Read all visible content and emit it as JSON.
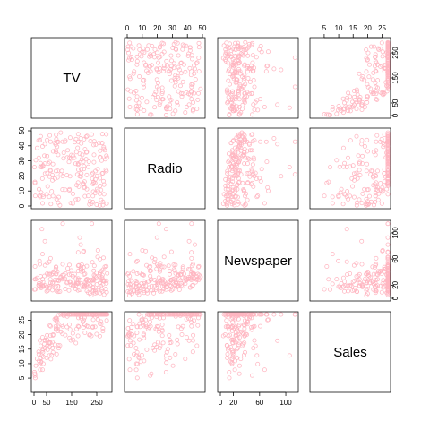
{
  "chart_data": {
    "type": "scatter",
    "subtype": "scatterplot-matrix",
    "variables": [
      "TV",
      "Radio",
      "Newspaper",
      "Sales"
    ],
    "point_color": "#FFB6C1",
    "point_shape": "open-circle",
    "point_count": 200,
    "axes": {
      "TV": {
        "range": [
          0,
          300
        ],
        "ticks": [
          0,
          50,
          150,
          250
        ]
      },
      "Radio": {
        "range": [
          0,
          50
        ],
        "ticks": [
          0,
          10,
          20,
          30,
          40,
          50
        ]
      },
      "Newspaper": {
        "range": [
          0,
          115
        ],
        "ticks": [
          0,
          20,
          60,
          100
        ]
      },
      "Sales": {
        "range": [
          1,
          27
        ],
        "ticks": [
          5,
          10,
          15,
          20,
          25
        ]
      }
    },
    "relationships": {
      "Sales_vs_TV": "strong positive, curving (sales rise quickly at low TV then level off)",
      "Sales_vs_Radio": "moderate positive",
      "Sales_vs_Newspaper": "weak",
      "Radio_vs_TV": "none",
      "Newspaper_vs_TV": "none",
      "Newspaper_vs_Radio": "weak positive"
    },
    "axis_label_placement": {
      "top": [
        "Radio",
        "Sales"
      ],
      "bottom": [
        "TV",
        "Newspaper"
      ],
      "left": [
        "Radio",
        "Sales"
      ],
      "right": [
        "TV",
        "Newspaper"
      ]
    }
  }
}
